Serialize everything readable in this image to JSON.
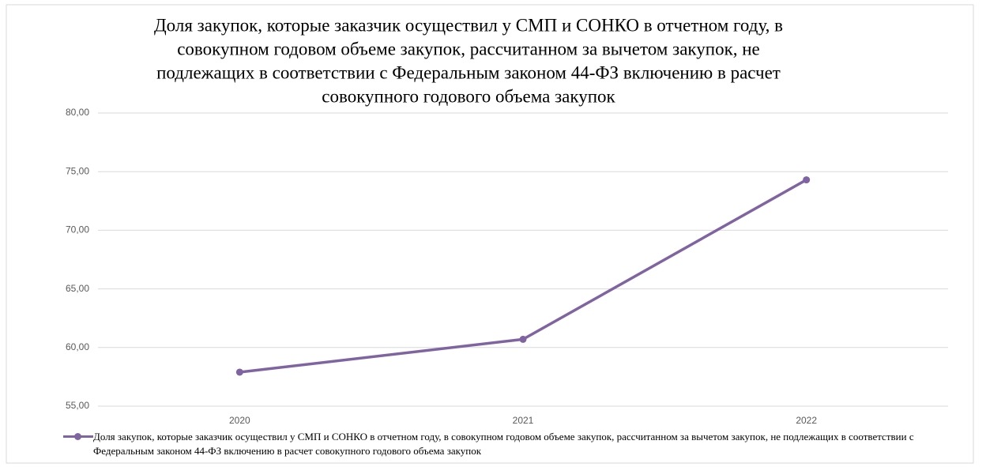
{
  "chart_data": {
    "type": "line",
    "title": [
      "Доля закупок, которые заказчик осуществил у СМП и СОНКО в отчетном году, в",
      "совокупном годовом объеме закупок, рассчитанном за вычетом закупок, не",
      "подлежащих в соответствии с Федеральным законом 44-ФЗ включению в расчет",
      "совокупного годового объема закупок"
    ],
    "categories": [
      "2020",
      "2021",
      "2022"
    ],
    "series": [
      {
        "name": "Доля закупок, которые заказчик осуществил у СМП и СОНКО в отчетном году, в совокупном годовом объеме закупок, рассчитанном за вычетом закупок, не подлежащих в соответствии с Федеральным законом 44-ФЗ включению в расчет совокупного годового объема закупок",
        "color": "#8064a2",
        "values": [
          57.9,
          60.7,
          74.3
        ]
      }
    ],
    "ylim": [
      55,
      80
    ],
    "yticks": [
      {
        "value": 55,
        "label": "55,00"
      },
      {
        "value": 60,
        "label": "60,00"
      },
      {
        "value": 65,
        "label": "65,00"
      },
      {
        "value": 70,
        "label": "70,00"
      },
      {
        "value": 75,
        "label": "75,00"
      },
      {
        "value": 80,
        "label": "80,00"
      }
    ],
    "grid": true,
    "legend": "bottom"
  }
}
